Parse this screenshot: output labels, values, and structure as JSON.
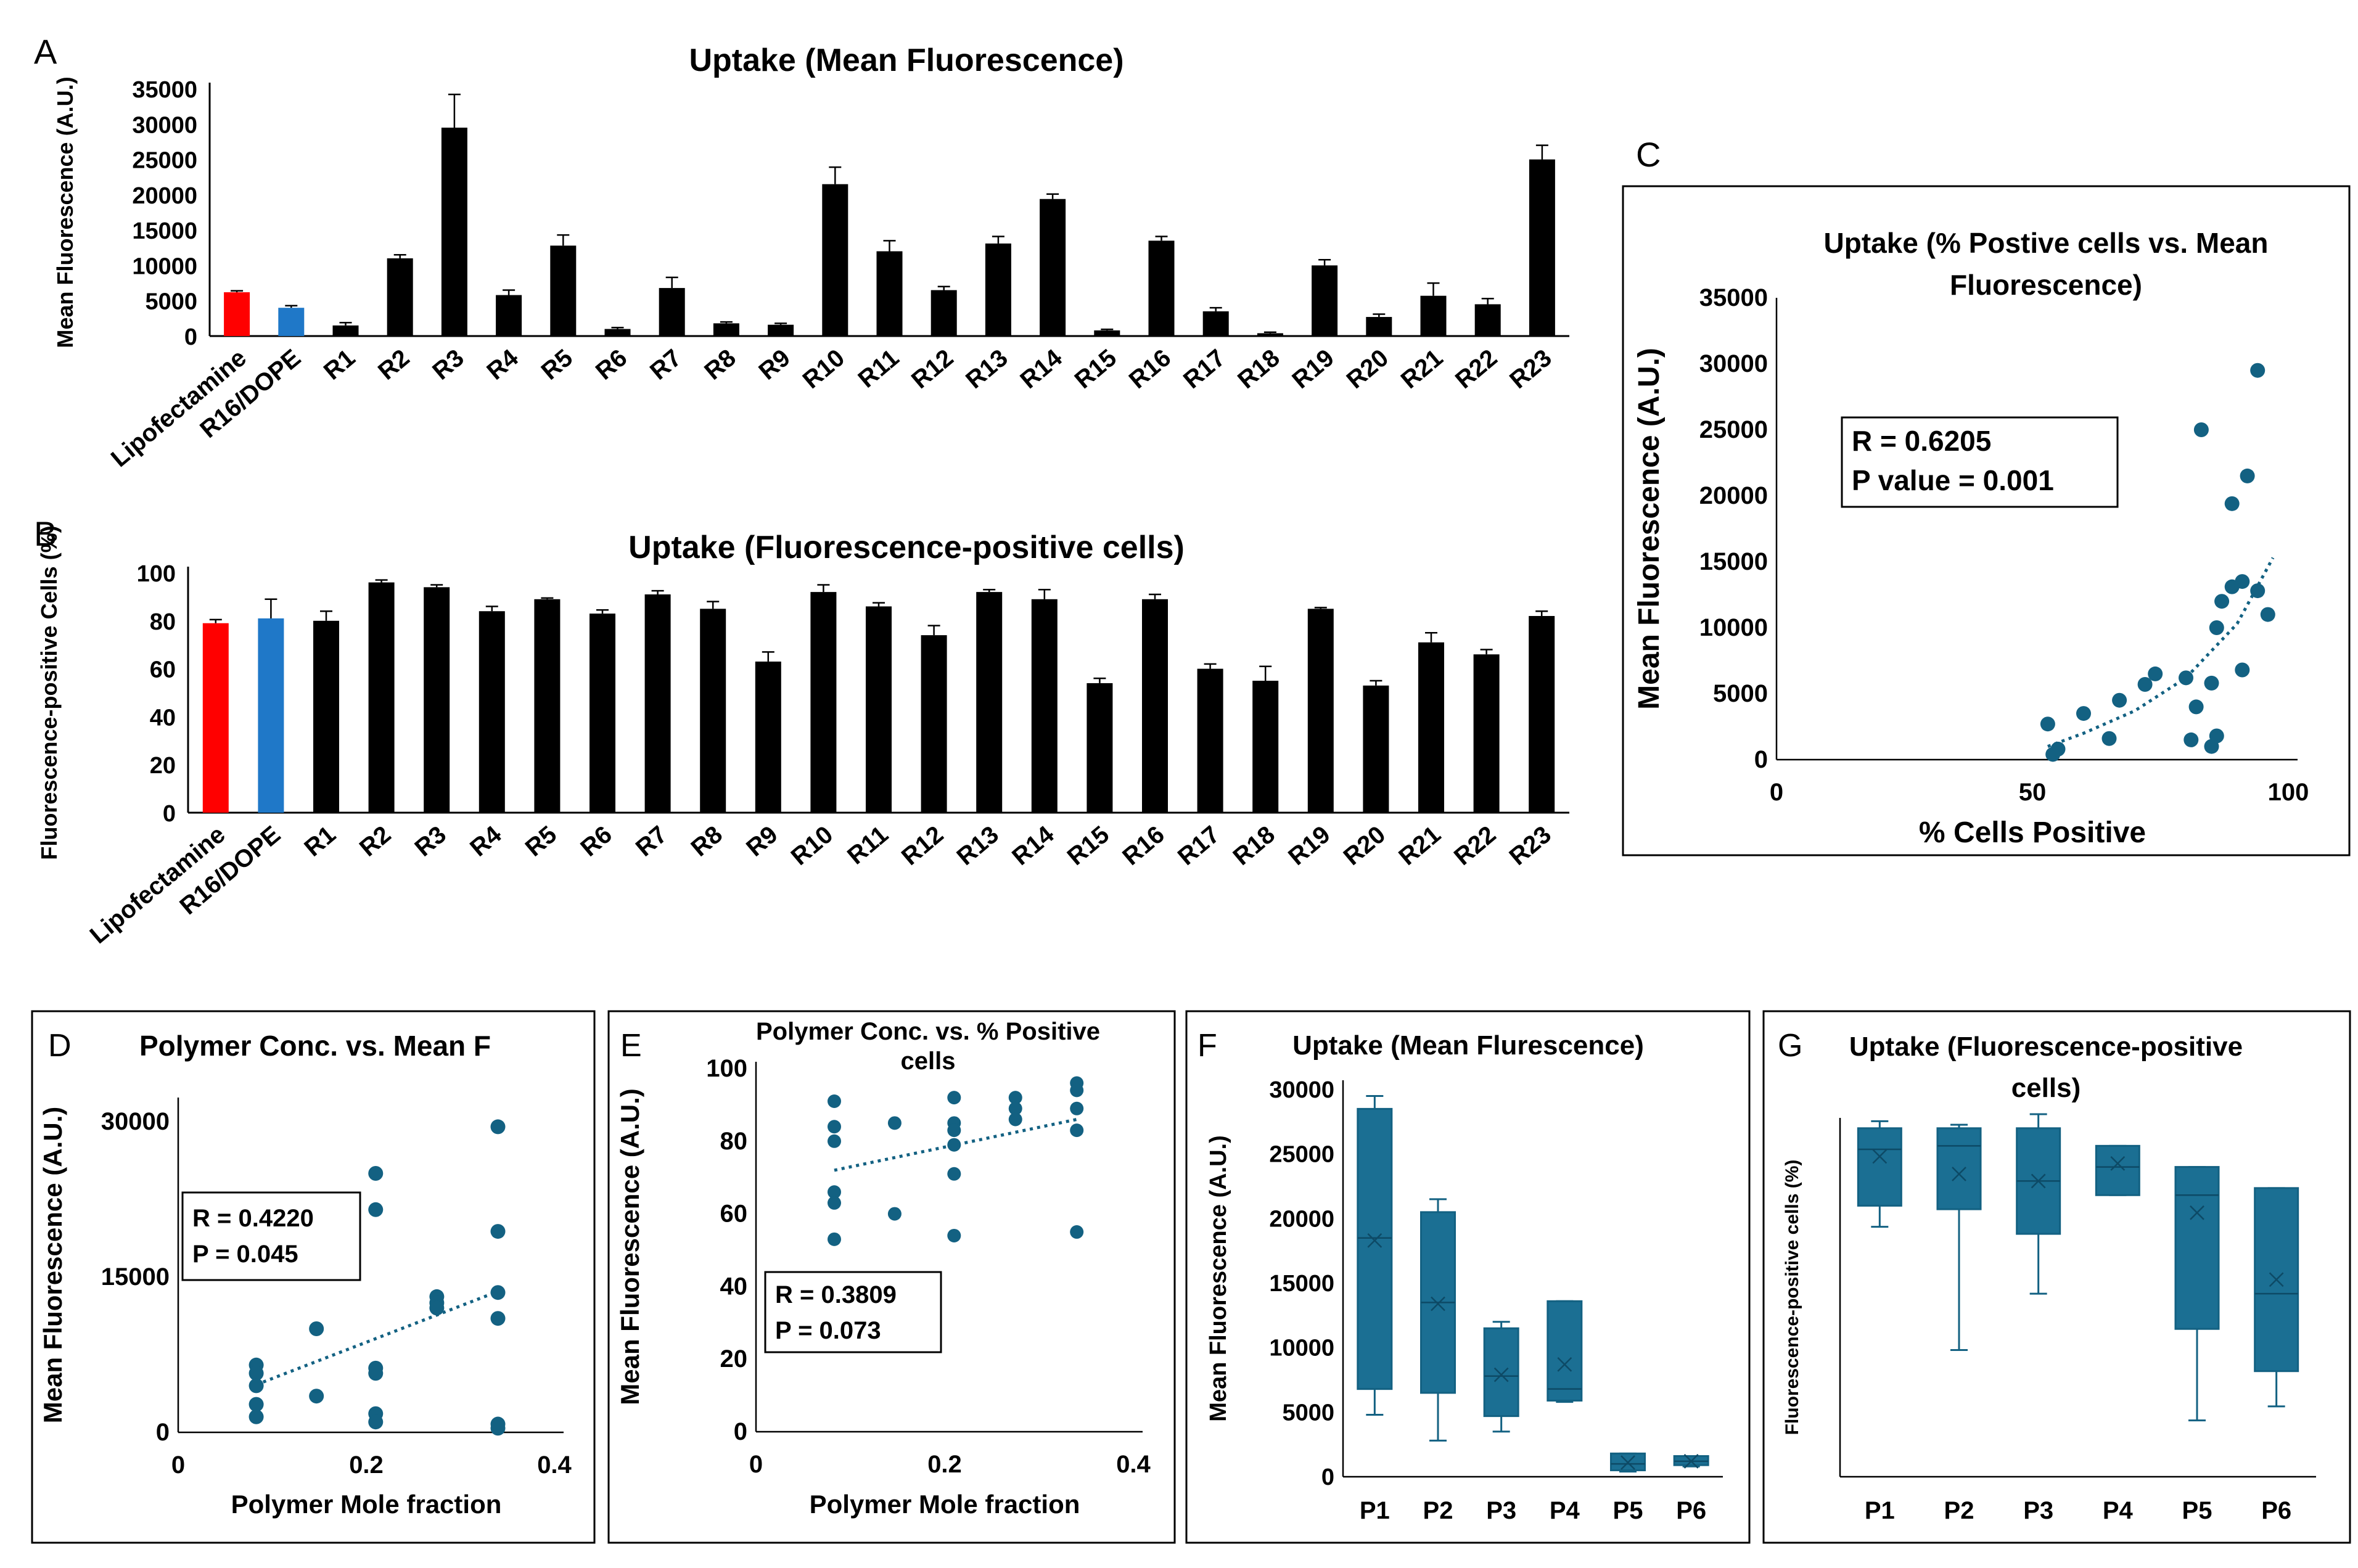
{
  "colors": {
    "black": "#000000",
    "red": "#ff0000",
    "blue": "#1f78c8",
    "teal": "#136182",
    "teal_fill": "#1b6f93"
  },
  "chart_data": [
    {
      "panel": "A",
      "type": "bar",
      "title": "Uptake (Mean Fluorescence)",
      "xlabel": "",
      "ylabel": "Mean Fluorescence (A.U.)",
      "ylim": [
        0,
        35000
      ],
      "yticks": [
        "35000",
        "30000",
        "25000",
        "20000",
        "15000",
        "10000",
        "5000",
        "0"
      ],
      "categories": [
        "Lipofectamine",
        "R16/DOPE",
        "R1",
        "R2",
        "R3",
        "R4",
        "R5",
        "R6",
        "R7",
        "R8",
        "R9",
        "R10",
        "R11",
        "R12",
        "R13",
        "R14",
        "R15",
        "R16",
        "R17",
        "R18",
        "R19",
        "R20",
        "R21",
        "R22",
        "R23"
      ],
      "values": [
        6200,
        4000,
        1500,
        11000,
        29500,
        5800,
        12800,
        1000,
        6800,
        1800,
        1600,
        21500,
        12000,
        6500,
        13100,
        19400,
        800,
        13500,
        3500,
        400,
        10000,
        2700,
        5700,
        4500,
        25000
      ],
      "errors": [
        200,
        300,
        400,
        500,
        4700,
        700,
        1500,
        200,
        1500,
        200,
        200,
        2400,
        1500,
        500,
        1000,
        700,
        150,
        600,
        500,
        150,
        800,
        400,
        1800,
        800,
        2000
      ]
    },
    {
      "panel": "B",
      "type": "bar",
      "title": "Uptake (Fluorescence-positive cells)",
      "xlabel": "",
      "ylabel": "Fluorescence-positive Cells (%)",
      "ylim": [
        0,
        100
      ],
      "yticks": [
        "100",
        "80",
        "60",
        "40",
        "20",
        "0"
      ],
      "categories": [
        "Lipofectamine",
        "R16/DOPE",
        "R1",
        "R2",
        "R3",
        "R4",
        "R5",
        "R6",
        "R7",
        "R8",
        "R9",
        "R10",
        "R11",
        "R12",
        "R13",
        "R14",
        "R15",
        "R16",
        "R17",
        "R18",
        "R19",
        "R20",
        "R21",
        "R22",
        "R23"
      ],
      "values": [
        79,
        81,
        80,
        96,
        94,
        84,
        89,
        83,
        91,
        85,
        63,
        92,
        86,
        74,
        92,
        89,
        54,
        89,
        60,
        55,
        85,
        53,
        71,
        66,
        82
      ],
      "errors": [
        1.5,
        8,
        4,
        1,
        1,
        2,
        0.5,
        1.5,
        1.5,
        3,
        4,
        3,
        1.5,
        4,
        1,
        4,
        2,
        2,
        2,
        6,
        0.5,
        2,
        4,
        2,
        2
      ]
    },
    {
      "panel": "C",
      "type": "scatter",
      "title": "Uptake (% Postive cells vs. Mean Fluorescence)",
      "title_lines": [
        "Uptake (% Postive cells vs. Mean",
        "Fluorescence)"
      ],
      "xlabel": "% Cells Positive",
      "ylabel": "Mean Fluorescence (A.U.)",
      "xlim": [
        0,
        100
      ],
      "ylim": [
        0,
        35000
      ],
      "xticks": [
        "0",
        "50",
        "100"
      ],
      "yticks": [
        "35000",
        "30000",
        "25000",
        "20000",
        "15000",
        "10000",
        "5000",
        "0"
      ],
      "annotation": [
        "R = 0.6205",
        "P value = 0.001"
      ],
      "x": [
        53,
        54,
        55,
        60,
        65,
        67,
        72,
        74,
        80,
        81,
        82,
        83,
        85,
        85,
        86,
        86,
        87,
        89,
        89,
        91,
        91,
        92,
        94,
        94,
        96
      ],
      "y": [
        2700,
        400,
        800,
        3500,
        1600,
        4500,
        5700,
        6500,
        6200,
        1500,
        4000,
        25000,
        1000,
        5800,
        1800,
        10000,
        12000,
        13100,
        19400,
        6800,
        13500,
        21500,
        12800,
        29500,
        11000
      ],
      "trend": {
        "type": "exponential",
        "points_x": [
          53,
          60,
          70,
          80,
          90,
          97
        ],
        "points_y": [
          1000,
          2000,
          3700,
          6200,
          10300,
          15300
        ]
      }
    },
    {
      "panel": "D",
      "type": "scatter",
      "title": "Polymer Conc. vs. Mean F",
      "xlabel": "Polymer Mole fraction",
      "ylabel": "Mean Fluorescence (A.U.)",
      "xlim": [
        0,
        0.4
      ],
      "ylim": [
        0,
        30000
      ],
      "xticks": [
        "0",
        "0.2",
        "0.4"
      ],
      "yticks": [
        "30000",
        "15000",
        "0"
      ],
      "annotation": [
        "R = 0.4220",
        "P = 0.045"
      ],
      "x": [
        0.083,
        0.083,
        0.083,
        0.083,
        0.083,
        0.147,
        0.147,
        0.21,
        0.21,
        0.21,
        0.21,
        0.21,
        0.21,
        0.275,
        0.275,
        0.275,
        0.34,
        0.34,
        0.34,
        0.34,
        0.34,
        0.34
      ],
      "y": [
        6500,
        5700,
        4500,
        2700,
        1500,
        10000,
        3500,
        25000,
        21500,
        6200,
        5700,
        1800,
        1000,
        13100,
        12500,
        12000,
        29500,
        19400,
        13500,
        11000,
        800,
        400
      ],
      "trend": {
        "type": "linear",
        "points_x": [
          0.083,
          0.34
        ],
        "points_y": [
          4600,
          13600
        ]
      }
    },
    {
      "panel": "E",
      "type": "scatter",
      "title": "Polymer Conc. vs. % Positive cells",
      "title_lines": [
        "Polymer Conc. vs. % Positive",
        "cells"
      ],
      "xlabel": "Polymer Mole fraction",
      "ylabel": "Mean Fluorescence (A.U.)",
      "xlim": [
        0,
        0.4
      ],
      "ylim": [
        0,
        100
      ],
      "xticks": [
        "0",
        "0.2",
        "0.4"
      ],
      "yticks": [
        "100",
        "80",
        "60",
        "40",
        "20",
        "0"
      ],
      "annotation": [
        "R = 0.3809",
        "P = 0.073"
      ],
      "x": [
        0.083,
        0.083,
        0.083,
        0.083,
        0.083,
        0.083,
        0.147,
        0.147,
        0.21,
        0.21,
        0.21,
        0.21,
        0.21,
        0.21,
        0.275,
        0.275,
        0.275,
        0.34,
        0.34,
        0.34,
        0.34,
        0.34
      ],
      "y": [
        91,
        84,
        80,
        66,
        63,
        53,
        85,
        60,
        92,
        85,
        83,
        79,
        71,
        54,
        92,
        89,
        86,
        96,
        94,
        89,
        83,
        55
      ],
      "trend": {
        "type": "linear",
        "points_x": [
          0.083,
          0.34
        ],
        "points_y": [
          72,
          86
        ]
      }
    },
    {
      "panel": "F",
      "type": "box",
      "title": "Uptake (Mean Flurescence)",
      "xlabel": "",
      "ylabel": "Mean Fluorescence (A.U.)",
      "ylim": [
        0,
        30000
      ],
      "yticks": [
        "30000",
        "25000",
        "20000",
        "15000",
        "10000",
        "5000",
        "0"
      ],
      "categories": [
        "P1",
        "P2",
        "P3",
        "P4",
        "P5",
        "P6"
      ],
      "boxes": [
        {
          "min": 4800,
          "q1": 6800,
          "median": 18500,
          "q3": 28500,
          "max": 29500,
          "mean": 18300
        },
        {
          "min": 2800,
          "q1": 6500,
          "median": 13500,
          "q3": 20500,
          "max": 21500,
          "mean": 13400
        },
        {
          "min": 3500,
          "q1": 4700,
          "median": 7800,
          "q3": 11500,
          "max": 12000,
          "mean": 7900
        },
        {
          "min": 5800,
          "q1": 5900,
          "median": 6800,
          "q3": 13600,
          "max": 13600,
          "mean": 8700
        },
        {
          "min": 400,
          "q1": 500,
          "median": 1000,
          "q3": 1800,
          "max": 1800,
          "mean": 1100
        },
        {
          "min": 800,
          "q1": 900,
          "median": 1200,
          "q3": 1600,
          "max": 1600,
          "mean": 1200
        }
      ]
    },
    {
      "panel": "G",
      "type": "box",
      "title": "Uptake (Fluorescence-positive cells)",
      "title_lines": [
        "Uptake (Fluorescence-positive",
        "cells)"
      ],
      "xlabel": "",
      "ylabel": "Fluorescence-positive cells (%)",
      "ylim": [
        45,
        100
      ],
      "yticks": [],
      "categories": [
        "P1",
        "P2",
        "P3",
        "P4",
        "P5",
        "P6"
      ],
      "boxes": [
        {
          "min": 80.5,
          "q1": 83.5,
          "median": 91.5,
          "q3": 94.5,
          "max": 95.5,
          "mean": 90.5
        },
        {
          "min": 63,
          "q1": 83,
          "median": 92,
          "q3": 94.5,
          "max": 95,
          "mean": 88
        },
        {
          "min": 71,
          "q1": 79.5,
          "median": 87,
          "q3": 94.5,
          "max": 96.5,
          "mean": 87
        },
        {
          "min": 85,
          "q1": 85,
          "median": 89,
          "q3": 92,
          "max": 92,
          "mean": 89.5
        },
        {
          "min": 53,
          "q1": 66,
          "median": 85,
          "q3": 89,
          "max": 89,
          "mean": 82.5
        },
        {
          "min": 55,
          "q1": 60,
          "median": 71,
          "q3": 86,
          "max": 86,
          "mean": 73
        }
      ]
    }
  ]
}
